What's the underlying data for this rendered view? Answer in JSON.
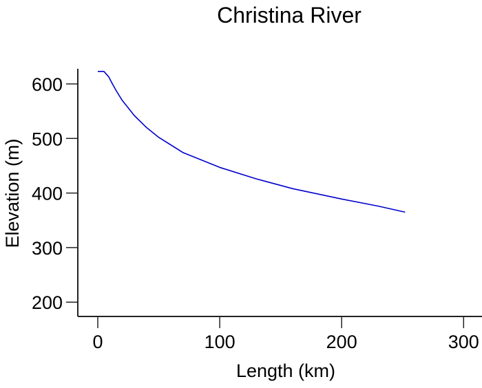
{
  "chart_data": {
    "type": "line",
    "title": "Christina River",
    "xlabel": "Length (km)",
    "ylabel": "Elevation (m)",
    "xlim": [
      -18,
      318
    ],
    "ylim": [
      175,
      625
    ],
    "xticks": [
      0,
      100,
      200,
      300
    ],
    "yticks": [
      200,
      300,
      400,
      500,
      600
    ],
    "grid": false,
    "line_color": "#0000cc",
    "series": [
      {
        "x": [
          0,
          5,
          9,
          12,
          15,
          20,
          30,
          40,
          50,
          70,
          100,
          130,
          160,
          200,
          230,
          252
        ],
        "y": [
          623,
          623,
          613,
          600,
          588,
          570,
          542,
          520,
          502,
          474,
          447,
          426,
          408,
          389,
          376,
          365
        ]
      }
    ]
  }
}
